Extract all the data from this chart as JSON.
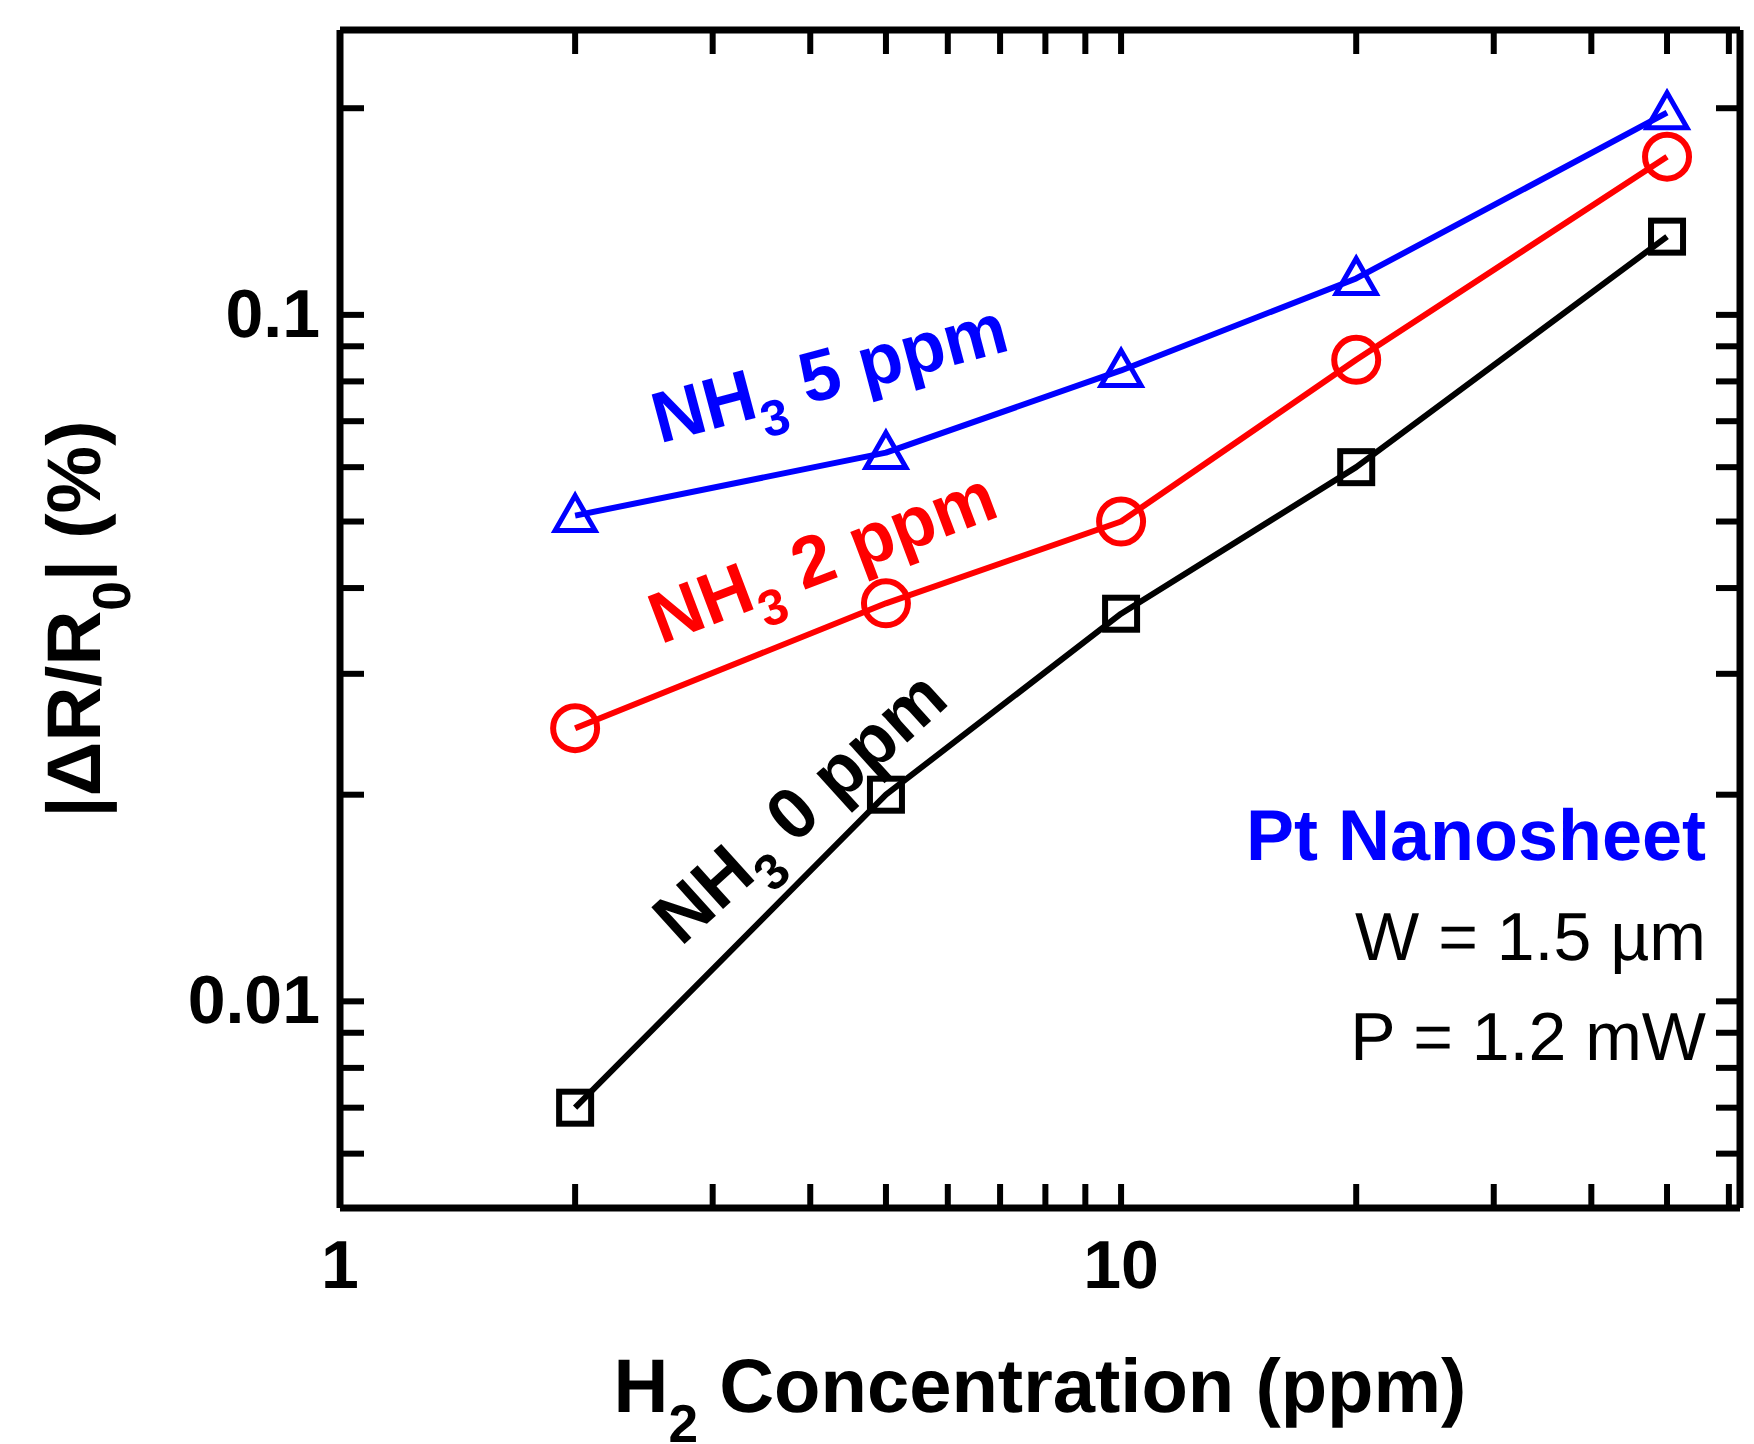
{
  "chart_data": {
    "type": "line",
    "xlabel": "H$_{2}$ Concentration (ppm)",
    "ylabel": "|ΔR/R$_{0}$| (%)",
    "log": "xy",
    "grid": false,
    "line_style": "solid",
    "x": [
      2,
      5,
      10,
      20,
      50
    ],
    "xlim": [
      1,
      62
    ],
    "xticks": [
      1,
      {
        "value": 2,
        "label": null
      },
      {
        "value": 3,
        "label": null
      },
      {
        "value": 4,
        "label": null
      },
      {
        "value": 5,
        "label": null
      },
      {
        "value": 6,
        "label": null
      },
      {
        "value": 7,
        "label": null
      },
      {
        "value": 8,
        "label": null
      },
      {
        "value": 9,
        "label": null
      },
      10,
      {
        "value": 20,
        "label": null
      },
      {
        "value": 30,
        "label": null
      },
      {
        "value": 40,
        "label": null
      },
      {
        "value": 50,
        "label": null
      },
      {
        "value": 60,
        "label": null
      }
    ],
    "ylim": [
      0.005,
      0.26
    ],
    "yticks": [
      {
        "value": 0.006,
        "label": null
      },
      {
        "value": 0.007,
        "label": null
      },
      {
        "value": 0.008,
        "label": null
      },
      {
        "value": 0.009,
        "label": null
      },
      0.01,
      {
        "value": 0.02,
        "label": null
      },
      {
        "value": 0.03,
        "label": null
      },
      {
        "value": 0.04,
        "label": null
      },
      {
        "value": 0.05,
        "label": null
      },
      {
        "value": 0.06,
        "label": null
      },
      {
        "value": 0.07,
        "label": null
      },
      {
        "value": 0.08,
        "label": null
      },
      {
        "value": 0.09,
        "label": null
      },
      0.1,
      {
        "value": 0.2,
        "label": null
      }
    ],
    "series": [
      {
        "name": "NH$_{3}$ 5 ppm",
        "color": "#0000ff",
        "marker": "triangle",
        "values": [
          0.051,
          0.063,
          0.083,
          0.113,
          0.197
        ]
      },
      {
        "name": "NH$_{3}$ 2 ppm",
        "color": "#ff0000",
        "marker": "circle",
        "values": [
          0.025,
          0.038,
          0.05,
          0.086,
          0.17
        ]
      },
      {
        "name": "NH$_{3}$ 0 ppm",
        "color": "#000000",
        "marker": "square",
        "values": [
          0.007,
          0.02,
          0.0367,
          0.06,
          0.13
        ]
      }
    ],
    "annotations": [
      "Pt Nanosheet",
      "W = 1.5 µm",
      "P = 1.2 mW"
    ]
  }
}
